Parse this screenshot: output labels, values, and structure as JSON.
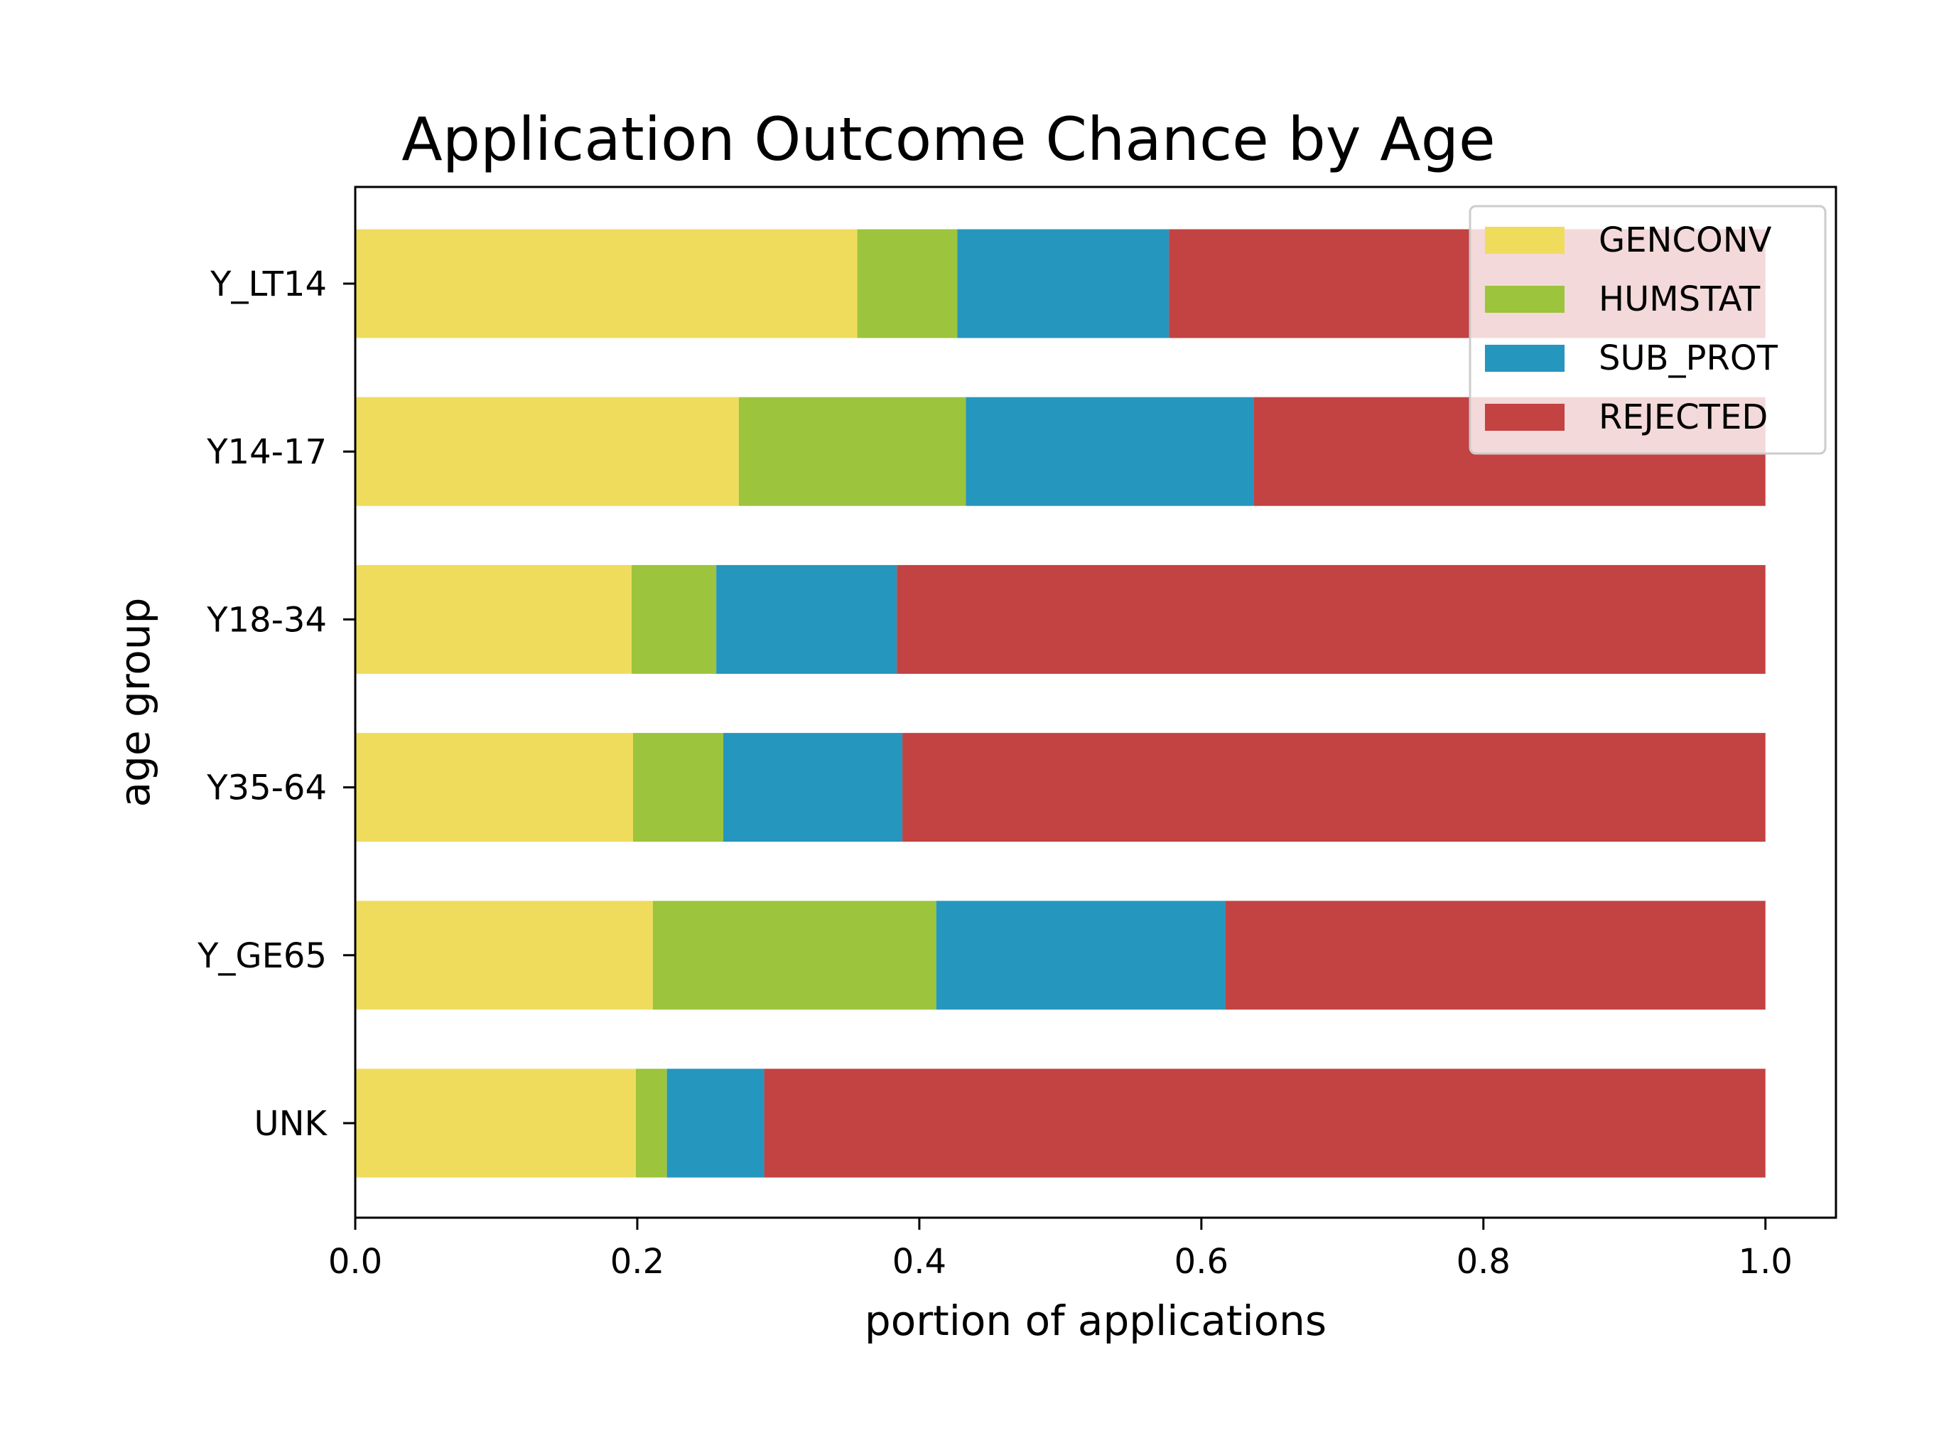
{
  "chart_data": {
    "type": "bar",
    "orientation": "horizontal",
    "stacked": true,
    "title": "Application Outcome Chance by Age",
    "xlabel": "portion of applications",
    "ylabel": "age group",
    "xlim": [
      0,
      1.05
    ],
    "xticks": [
      0.0,
      0.2,
      0.4,
      0.6,
      0.8,
      1.0
    ],
    "xtick_labels": [
      "0.0",
      "0.2",
      "0.4",
      "0.6",
      "0.8",
      "1.0"
    ],
    "grid": false,
    "legend": "top-right",
    "categories": [
      "Y_LT14",
      "Y14-17",
      "Y18-34",
      "Y35-64",
      "Y_GE65",
      "UNK"
    ],
    "series": [
      {
        "name": "GENCONV",
        "color": "#f0dc5c",
        "values": [
          0.356,
          0.272,
          0.196,
          0.197,
          0.211,
          0.199
        ]
      },
      {
        "name": "HUMSTAT",
        "color": "#9cc43c",
        "values": [
          0.071,
          0.161,
          0.06,
          0.064,
          0.201,
          0.022
        ]
      },
      {
        "name": "SUB_PROT",
        "color": "#2596be",
        "values": [
          0.15,
          0.204,
          0.128,
          0.127,
          0.205,
          0.069
        ]
      },
      {
        "name": "REJECTED",
        "color": "#c34242",
        "values": [
          0.423,
          0.363,
          0.616,
          0.612,
          0.383,
          0.71
        ]
      }
    ]
  }
}
